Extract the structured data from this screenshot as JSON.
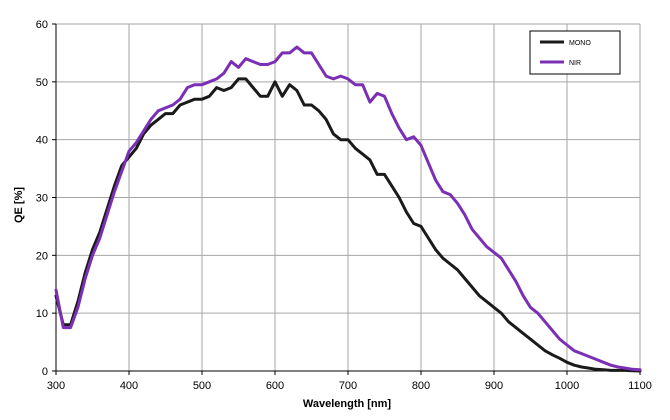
{
  "chart_data": {
    "type": "line",
    "title": "",
    "xlabel": "Wavelength [nm]",
    "ylabel": "QE [%]",
    "xlim": [
      300,
      1100
    ],
    "ylim": [
      0,
      60
    ],
    "x_ticks": [
      300,
      400,
      500,
      600,
      700,
      800,
      900,
      1000,
      1100
    ],
    "y_ticks": [
      0,
      10,
      20,
      30,
      40,
      50,
      60
    ],
    "grid": true,
    "legend_position": "top-right",
    "series": [
      {
        "name": "MONO",
        "color": "#1a1a1a",
        "x": [
          300,
          310,
          320,
          330,
          340,
          350,
          360,
          370,
          380,
          390,
          400,
          410,
          420,
          430,
          440,
          450,
          460,
          470,
          480,
          490,
          500,
          510,
          520,
          530,
          540,
          550,
          560,
          570,
          580,
          590,
          600,
          610,
          620,
          630,
          640,
          650,
          660,
          670,
          680,
          690,
          700,
          710,
          720,
          730,
          740,
          750,
          760,
          770,
          780,
          790,
          800,
          810,
          820,
          830,
          840,
          850,
          860,
          870,
          880,
          890,
          900,
          910,
          920,
          930,
          940,
          950,
          960,
          970,
          980,
          990,
          1000,
          1010,
          1020,
          1030,
          1040,
          1050,
          1060,
          1070,
          1080,
          1090,
          1100
        ],
        "values": [
          13,
          8,
          8,
          12,
          17,
          21,
          24,
          28,
          32,
          35.5,
          37,
          38.5,
          41,
          42.5,
          43.5,
          44.5,
          44.5,
          46,
          46.5,
          47,
          47,
          47.5,
          49,
          48.5,
          49,
          50.5,
          50.5,
          49,
          47.5,
          47.5,
          50,
          47.5,
          49.5,
          48.5,
          46,
          46,
          45,
          43.5,
          41,
          40,
          40,
          38.5,
          37.5,
          36.5,
          34,
          34,
          32,
          30,
          27.5,
          25.5,
          25,
          23,
          21,
          19.5,
          18.5,
          17.5,
          16,
          14.5,
          13,
          12,
          11,
          10,
          8.5,
          7.5,
          6.5,
          5.5,
          4.5,
          3.5,
          2.8,
          2.2,
          1.5,
          1,
          0.7,
          0.5,
          0.3,
          0.2,
          0.1,
          0.1,
          0.1,
          0.05,
          0
        ]
      },
      {
        "name": "NIR",
        "color": "#7a2fb5",
        "x": [
          300,
          310,
          320,
          330,
          340,
          350,
          360,
          370,
          380,
          390,
          400,
          410,
          420,
          430,
          440,
          450,
          460,
          470,
          480,
          490,
          500,
          510,
          520,
          530,
          540,
          550,
          560,
          570,
          580,
          590,
          600,
          610,
          620,
          630,
          640,
          650,
          660,
          670,
          680,
          690,
          700,
          710,
          720,
          730,
          740,
          750,
          760,
          770,
          780,
          790,
          800,
          810,
          820,
          830,
          840,
          850,
          860,
          870,
          880,
          890,
          900,
          910,
          920,
          930,
          940,
          950,
          960,
          970,
          980,
          990,
          1000,
          1010,
          1020,
          1030,
          1040,
          1050,
          1060,
          1070,
          1080,
          1090,
          1100
        ],
        "values": [
          14,
          7.5,
          7.5,
          11,
          16,
          20,
          23,
          27,
          31,
          34.5,
          38,
          39.5,
          41.5,
          43.5,
          45,
          45.5,
          46,
          47,
          49,
          49.5,
          49.5,
          50,
          50.5,
          51.5,
          53.5,
          52.5,
          54,
          53.5,
          53,
          53,
          53.5,
          55,
          55,
          56,
          55,
          55,
          53,
          51,
          50.5,
          51,
          50.5,
          49.5,
          49.5,
          46.5,
          48,
          47.5,
          44.5,
          42,
          40,
          40.5,
          39,
          36,
          33,
          31,
          30.5,
          29,
          27,
          24.5,
          23,
          21.5,
          20.5,
          19.5,
          17.5,
          15.5,
          13,
          11,
          10,
          8.5,
          7,
          5.5,
          4.5,
          3.5,
          3,
          2.5,
          2,
          1.5,
          1,
          0.7,
          0.5,
          0.3,
          0.2
        ]
      }
    ]
  }
}
